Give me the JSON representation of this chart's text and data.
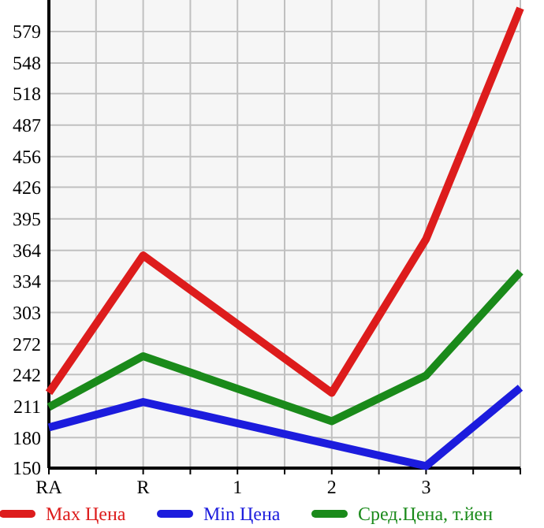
{
  "chart_data": {
    "type": "line",
    "categories": [
      "RA",
      "R",
      "1",
      "2",
      "3",
      null
    ],
    "series": [
      {
        "name": "Max Цена",
        "color": "#dd1c1c",
        "values": [
          224,
          359,
          null,
          224,
          375,
          602
        ]
      },
      {
        "name": "Min Цена",
        "color": "#1c1cdd",
        "values": [
          190,
          215,
          null,
          173,
          152,
          229
        ]
      },
      {
        "name": "Сред.Цена, т.йен",
        "color": "#1a8a1a",
        "values": [
          210,
          260,
          null,
          196,
          241,
          343
        ]
      }
    ],
    "ylim": [
      150,
      610
    ],
    "yticks": [
      150,
      180,
      211,
      242,
      272,
      303,
      334,
      364,
      395,
      426,
      456,
      487,
      518,
      548,
      579
    ],
    "grid": true,
    "legend": "bottom",
    "marker": "none",
    "line_style": "solid"
  }
}
